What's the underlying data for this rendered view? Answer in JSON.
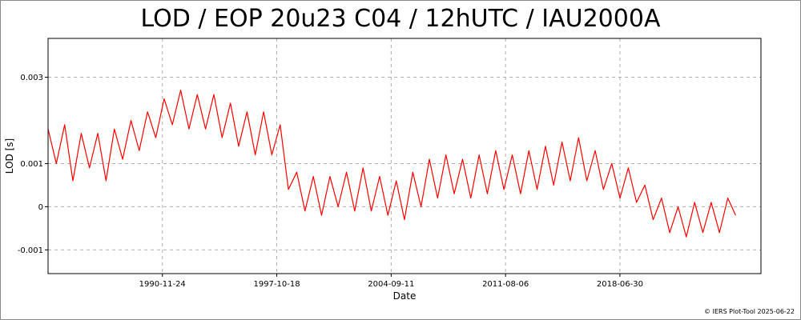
{
  "chart_data": {
    "type": "line",
    "title": "LOD / EOP 20u23 C04 / 12hUTC / IAU2000A",
    "xlabel": "Date",
    "ylabel": "LOD [s]",
    "x_tick_labels": [
      "1990-11-24",
      "1997-10-18",
      "2004-09-11",
      "2011-08-06",
      "2018-06-30"
    ],
    "x_tick_values": [
      "1990-11-24",
      "1997-10-18",
      "2004-09-11",
      "2011-08-06",
      "2018-06-30"
    ],
    "y_tick_labels": [
      "-0.001",
      "0",
      "0.001",
      "0.003"
    ],
    "y_tick_values": [
      -0.001,
      0,
      0.001,
      0.003
    ],
    "xlim": [
      "1984-01-01",
      "2027-01-01"
    ],
    "ylim": [
      -0.00155,
      0.0039
    ],
    "grid": true,
    "series": [
      {
        "color": "#ff0000",
        "x": [
          "1984-01-01",
          "1984-07-01",
          "1985-01-01",
          "1985-07-01",
          "1986-01-01",
          "1986-07-01",
          "1987-01-01",
          "1987-07-01",
          "1988-01-01",
          "1988-07-01",
          "1989-01-01",
          "1989-07-01",
          "1990-01-01",
          "1990-07-01",
          "1991-01-01",
          "1991-07-01",
          "1992-01-01",
          "1992-07-01",
          "1993-01-01",
          "1993-07-01",
          "1994-01-01",
          "1994-07-01",
          "1995-01-01",
          "1995-07-01",
          "1996-01-01",
          "1996-07-01",
          "1997-01-01",
          "1997-07-01",
          "1998-01-01",
          "1998-07-01",
          "1999-01-01",
          "1999-07-01",
          "2000-01-01",
          "2000-07-01",
          "2001-01-01",
          "2001-07-01",
          "2002-01-01",
          "2002-07-01",
          "2003-01-01",
          "2003-07-01",
          "2004-01-01",
          "2004-07-01",
          "2005-01-01",
          "2005-07-01",
          "2006-01-01",
          "2006-07-01",
          "2007-01-01",
          "2007-07-01",
          "2008-01-01",
          "2008-07-01",
          "2009-01-01",
          "2009-07-01",
          "2010-01-01",
          "2010-07-01",
          "2011-01-01",
          "2011-07-01",
          "2012-01-01",
          "2012-07-01",
          "2013-01-01",
          "2013-07-01",
          "2014-01-01",
          "2014-07-01",
          "2015-01-01",
          "2015-07-01",
          "2016-01-01",
          "2016-07-01",
          "2017-01-01",
          "2017-07-01",
          "2018-01-01",
          "2018-07-01",
          "2019-01-01",
          "2019-07-01",
          "2020-01-01",
          "2020-07-01",
          "2021-01-01",
          "2021-07-01",
          "2022-01-01",
          "2022-07-01",
          "2023-01-01",
          "2023-07-01",
          "2024-01-01",
          "2024-07-01",
          "2025-01-01",
          "2025-06-22"
        ],
        "y": [
          0.0018,
          0.001,
          0.0019,
          0.0006,
          0.0017,
          0.0009,
          0.0017,
          0.0006,
          0.0018,
          0.0011,
          0.002,
          0.0013,
          0.0022,
          0.0016,
          0.0025,
          0.0019,
          0.0027,
          0.0018,
          0.0026,
          0.0018,
          0.0026,
          0.0016,
          0.0024,
          0.0014,
          0.0022,
          0.0012,
          0.0022,
          0.0012,
          0.0019,
          0.0004,
          0.0008,
          -0.0001,
          0.0007,
          -0.0002,
          0.0007,
          0.0,
          0.0008,
          -0.0001,
          0.0009,
          -0.0001,
          0.0007,
          -0.0002,
          0.0006,
          -0.0003,
          0.0008,
          0.0,
          0.0011,
          0.0002,
          0.0012,
          0.0003,
          0.0011,
          0.0002,
          0.0012,
          0.0003,
          0.0013,
          0.0004,
          0.0012,
          0.0003,
          0.0013,
          0.0004,
          0.0014,
          0.0005,
          0.0015,
          0.0006,
          0.0016,
          0.0006,
          0.0013,
          0.0004,
          0.001,
          0.0002,
          0.0009,
          0.0001,
          0.0005,
          -0.0003,
          0.0002,
          -0.0006,
          0.0,
          -0.0007,
          0.0001,
          -0.0006,
          0.0001,
          -0.0006,
          0.0002,
          -0.0002
        ]
      }
    ]
  },
  "footer": {
    "copyright": "© IERS Plot-Tool 2025-06-22"
  }
}
